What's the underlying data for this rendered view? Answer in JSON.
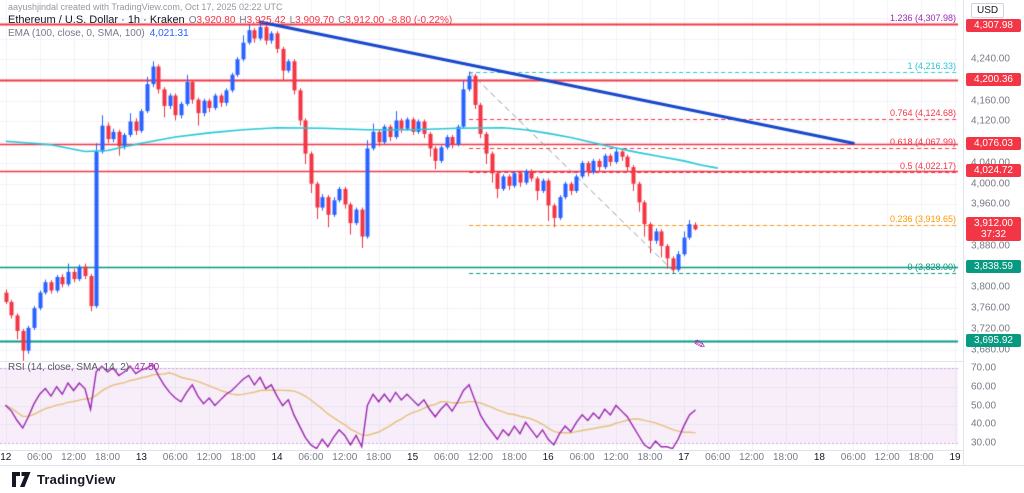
{
  "header": {
    "attribution": "aayushjindal created with TradingView.com, Oct 17, 2025 02:22 UTC",
    "symbol": "Ethereum / U.S. Dollar · 1h · Kraken",
    "ohlc": [
      {
        "k": "O",
        "v": "3,920.80"
      },
      {
        "k": "H",
        "v": "3,925.42"
      },
      {
        "k": "L",
        "v": "3,909.70"
      },
      {
        "k": "C",
        "v": "3,912.00"
      }
    ],
    "change": "-8.80 (-0.22%)",
    "ema_label": "EMA (100, close, 0, SMA, 100)",
    "ema_value": "4,021.31"
  },
  "rsi": {
    "label": "RSI (14, close, SMA, 14, 2)",
    "value": "47.50"
  },
  "price_axis": {
    "currency": "USD",
    "ticks": [
      [
        4240,
        "4,240.00"
      ],
      [
        4160,
        "4,160.00"
      ],
      [
        4120,
        "4,120.00"
      ],
      [
        4040,
        "4,040.00"
      ],
      [
        4000,
        "4,000.00"
      ],
      [
        3960,
        "3,960.00"
      ],
      [
        3880,
        "3,880.00"
      ],
      [
        3800,
        "3,800.00"
      ],
      [
        3760,
        "3,760.00"
      ],
      [
        3720,
        "3,720.00"
      ],
      [
        3680,
        "3,680.00"
      ]
    ],
    "rsi_ticks": [
      [
        70,
        "70.00"
      ],
      [
        60,
        "60.00"
      ],
      [
        50,
        "50.00"
      ],
      [
        40,
        "40.00"
      ],
      [
        30,
        "30.00"
      ]
    ],
    "badges": [
      {
        "price": 4307.98,
        "text": "4,307.98",
        "bg": "#f23645"
      },
      {
        "price": 4200.36,
        "text": "4,200.36",
        "bg": "#f23645"
      },
      {
        "price": 4076.03,
        "text": "4,076.03",
        "bg": "#f23645"
      },
      {
        "price": 4024.72,
        "text": "4,024.72",
        "bg": "#f23645"
      },
      {
        "price": 3912.0,
        "text": "3,912.00",
        "bg": "#f23645",
        "countdown": "37:32"
      },
      {
        "price": 3838.59,
        "text": "3,838.59",
        "bg": "#089981"
      },
      {
        "price": 3695.92,
        "text": "3,695.92",
        "bg": "#089981"
      }
    ]
  },
  "bottom_bar": {
    "logo_text": "TradingView"
  },
  "icons": {
    "brush": "✎"
  },
  "colors": {
    "up": "#2962ff",
    "down": "#f23645",
    "ema": "#26c6da",
    "grid": "#f0f3fa",
    "trend": "#1848cc",
    "dash_trend": "#9598a1",
    "red_line": "#f23645",
    "green_line": "#089981",
    "rsi_line": "#9c27b0",
    "rsi_sma": "#e5c07b",
    "rsi_band": "rgba(156,39,176,0.08)",
    "rsi_band_edge": "rgba(156,39,176,0.35)"
  },
  "chart_data": {
    "type": "candlestick",
    "title": "Ethereum / U.S. Dollar",
    "interval": "1h",
    "exchange": "Kraken",
    "ylim": [
      3660,
      4335
    ],
    "grid_step": 40,
    "hours_total": 170,
    "time_labels": [
      [
        0,
        "12",
        1
      ],
      [
        6,
        "06:00",
        0
      ],
      [
        12,
        "12:00",
        0
      ],
      [
        18,
        "18:00",
        0
      ],
      [
        24,
        "13",
        1
      ],
      [
        30,
        "06:00",
        0
      ],
      [
        36,
        "12:00",
        0
      ],
      [
        42,
        "18:00",
        0
      ],
      [
        48,
        "14",
        1
      ],
      [
        54,
        "06:00",
        0
      ],
      [
        60,
        "12:00",
        0
      ],
      [
        66,
        "18:00",
        0
      ],
      [
        72,
        "15",
        1
      ],
      [
        78,
        "06:00",
        0
      ],
      [
        84,
        "12:00",
        0
      ],
      [
        90,
        "18:00",
        0
      ],
      [
        96,
        "16",
        1
      ],
      [
        102,
        "06:00",
        0
      ],
      [
        108,
        "12:00",
        0
      ],
      [
        114,
        "18:00",
        0
      ],
      [
        120,
        "17",
        1
      ],
      [
        126,
        "06:00",
        0
      ],
      [
        132,
        "12:00",
        0
      ],
      [
        138,
        "18:00",
        0
      ],
      [
        144,
        "18",
        1
      ],
      [
        150,
        "06:00",
        0
      ],
      [
        156,
        "12:00",
        0
      ],
      [
        162,
        "18:00",
        0
      ],
      [
        168,
        "19",
        1
      ]
    ],
    "candles": [
      [
        3790,
        3796,
        3768,
        3772
      ],
      [
        3772,
        3776,
        3740,
        3746
      ],
      [
        3746,
        3750,
        3700,
        3716
      ],
      [
        3716,
        3720,
        3658,
        3678
      ],
      [
        3678,
        3726,
        3672,
        3722
      ],
      [
        3722,
        3764,
        3718,
        3760
      ],
      [
        3760,
        3794,
        3756,
        3790
      ],
      [
        3790,
        3815,
        3786,
        3810
      ],
      [
        3810,
        3814,
        3788,
        3794
      ],
      [
        3794,
        3824,
        3790,
        3820
      ],
      [
        3820,
        3826,
        3800,
        3806
      ],
      [
        3806,
        3846,
        3802,
        3830
      ],
      [
        3830,
        3836,
        3810,
        3816
      ],
      [
        3816,
        3844,
        3812,
        3840
      ],
      [
        3840,
        3846,
        3816,
        3822
      ],
      [
        3822,
        3826,
        3754,
        3764
      ],
      [
        3764,
        4078,
        3760,
        4062
      ],
      [
        4062,
        4132,
        4058,
        4112
      ],
      [
        4112,
        4118,
        4078,
        4086
      ],
      [
        4086,
        4106,
        4080,
        4100
      ],
      [
        4100,
        4104,
        4054,
        4072
      ],
      [
        4072,
        4098,
        4066,
        4094
      ],
      [
        4094,
        4136,
        4090,
        4120
      ],
      [
        4120,
        4126,
        4094,
        4102
      ],
      [
        4102,
        4144,
        4098,
        4140
      ],
      [
        4140,
        4206,
        4136,
        4192
      ],
      [
        4192,
        4236,
        4186,
        4226
      ],
      [
        4226,
        4230,
        4174,
        4182
      ],
      [
        4182,
        4186,
        4128,
        4150
      ],
      [
        4150,
        4174,
        4144,
        4170
      ],
      [
        4170,
        4174,
        4122,
        4132
      ],
      [
        4132,
        4158,
        4126,
        4154
      ],
      [
        4154,
        4210,
        4150,
        4196
      ],
      [
        4196,
        4200,
        4154,
        4162
      ],
      [
        4162,
        4166,
        4112,
        4136
      ],
      [
        4136,
        4164,
        4130,
        4160
      ],
      [
        4160,
        4164,
        4138,
        4146
      ],
      [
        4146,
        4174,
        4142,
        4170
      ],
      [
        4170,
        4174,
        4148,
        4156
      ],
      [
        4156,
        4184,
        4150,
        4180
      ],
      [
        4180,
        4214,
        4176,
        4210
      ],
      [
        4210,
        4244,
        4206,
        4240
      ],
      [
        4240,
        4286,
        4236,
        4272
      ],
      [
        4272,
        4306,
        4268,
        4296
      ],
      [
        4296,
        4300,
        4272,
        4280
      ],
      [
        4280,
        4308,
        4276,
        4302
      ],
      [
        4302,
        4306,
        4268,
        4276
      ],
      [
        4276,
        4294,
        4270,
        4290
      ],
      [
        4290,
        4294,
        4252,
        4260
      ],
      [
        4260,
        4264,
        4198,
        4218
      ],
      [
        4218,
        4240,
        4214,
        4236
      ],
      [
        4236,
        4240,
        4172,
        4180
      ],
      [
        4180,
        4184,
        4112,
        4122
      ],
      [
        4122,
        4126,
        4038,
        4058
      ],
      [
        4058,
        4062,
        3982,
        4000
      ],
      [
        4000,
        4004,
        3932,
        3954
      ],
      [
        3954,
        3980,
        3948,
        3974
      ],
      [
        3974,
        3978,
        3916,
        3940
      ],
      [
        3940,
        3974,
        3936,
        3968
      ],
      [
        3968,
        3994,
        3964,
        3990
      ],
      [
        3990,
        3994,
        3952,
        3960
      ],
      [
        3960,
        3964,
        3902,
        3924
      ],
      [
        3924,
        3954,
        3920,
        3950
      ],
      [
        3950,
        3954,
        3876,
        3898
      ],
      [
        3898,
        4084,
        3894,
        4068
      ],
      [
        4068,
        4116,
        4064,
        4100
      ],
      [
        4100,
        4104,
        4072,
        4080
      ],
      [
        4080,
        4114,
        4076,
        4110
      ],
      [
        4110,
        4114,
        4082,
        4090
      ],
      [
        4090,
        4140,
        4086,
        4122
      ],
      [
        4122,
        4126,
        4098,
        4106
      ],
      [
        4106,
        4128,
        4102,
        4124
      ],
      [
        4124,
        4128,
        4094,
        4100
      ],
      [
        4100,
        4124,
        4096,
        4120
      ],
      [
        4120,
        4124,
        4088,
        4096
      ],
      [
        4096,
        4100,
        4052,
        4068
      ],
      [
        4068,
        4072,
        4028,
        4044
      ],
      [
        4044,
        4074,
        4040,
        4070
      ],
      [
        4070,
        4094,
        4066,
        4090
      ],
      [
        4090,
        4094,
        4068,
        4076
      ],
      [
        4076,
        4114,
        4072,
        4110
      ],
      [
        4110,
        4198,
        4106,
        4182
      ],
      [
        4182,
        4216,
        4178,
        4208
      ],
      [
        4208,
        4212,
        4144,
        4152
      ],
      [
        4152,
        4156,
        4088,
        4096
      ],
      [
        4096,
        4100,
        4038,
        4058
      ],
      [
        4058,
        4062,
        4002,
        4020
      ],
      [
        4020,
        4024,
        3972,
        3990
      ],
      [
        3990,
        4018,
        3986,
        4014
      ],
      [
        4014,
        4018,
        3988,
        3996
      ],
      [
        3996,
        4024,
        3992,
        4020
      ],
      [
        4020,
        4024,
        3994,
        4002
      ],
      [
        4002,
        4028,
        3998,
        4024
      ],
      [
        4024,
        4028,
        4004,
        4010
      ],
      [
        4010,
        4014,
        3968,
        3986
      ],
      [
        3986,
        4010,
        3982,
        4006
      ],
      [
        4006,
        4010,
        3928,
        3958
      ],
      [
        3958,
        3962,
        3916,
        3934
      ],
      [
        3934,
        3978,
        3930,
        3974
      ],
      [
        3974,
        4004,
        3970,
        4000
      ],
      [
        4000,
        4004,
        3978,
        3986
      ],
      [
        3986,
        4018,
        3982,
        4014
      ],
      [
        4014,
        4044,
        4010,
        4040
      ],
      [
        4040,
        4044,
        4014,
        4022
      ],
      [
        4022,
        4048,
        4018,
        4044
      ],
      [
        4044,
        4048,
        4024,
        4032
      ],
      [
        4032,
        4058,
        4028,
        4054
      ],
      [
        4054,
        4058,
        4034,
        4042
      ],
      [
        4042,
        4068,
        4038,
        4062
      ],
      [
        4062,
        4066,
        4044,
        4052
      ],
      [
        4052,
        4056,
        4024,
        4032
      ],
      [
        4032,
        4036,
        3986,
        4000
      ],
      [
        4000,
        4004,
        3946,
        3964
      ],
      [
        3964,
        3968,
        3898,
        3922
      ],
      [
        3922,
        3926,
        3866,
        3890
      ],
      [
        3890,
        3914,
        3884,
        3908
      ],
      [
        3908,
        3912,
        3858,
        3880
      ],
      [
        3880,
        3884,
        3836,
        3856
      ],
      [
        3856,
        3860,
        3828,
        3834
      ],
      [
        3834,
        3870,
        3830,
        3864
      ],
      [
        3864,
        3908,
        3860,
        3896
      ],
      [
        3896,
        3930,
        3892,
        3922
      ],
      [
        3920.8,
        3925.42,
        3909.7,
        3912
      ]
    ],
    "ema_points": [
      [
        0,
        4082
      ],
      [
        8,
        4075
      ],
      [
        14,
        4062
      ],
      [
        18,
        4064
      ],
      [
        24,
        4078
      ],
      [
        30,
        4090
      ],
      [
        36,
        4098
      ],
      [
        42,
        4104
      ],
      [
        48,
        4108
      ],
      [
        56,
        4107
      ],
      [
        64,
        4104
      ],
      [
        72,
        4104
      ],
      [
        80,
        4107
      ],
      [
        88,
        4108
      ],
      [
        92,
        4104
      ],
      [
        96,
        4097
      ],
      [
        100,
        4089
      ],
      [
        104,
        4079
      ],
      [
        108,
        4069
      ],
      [
        112,
        4060
      ],
      [
        116,
        4052
      ],
      [
        120,
        4044
      ],
      [
        123,
        4036
      ],
      [
        126,
        4030
      ]
    ],
    "rsi_values": [
      50,
      47,
      42,
      38,
      44,
      51,
      56,
      59,
      55,
      60,
      56,
      62,
      58,
      62,
      59,
      48,
      68,
      71,
      68,
      70,
      66,
      68,
      71,
      67,
      69,
      70,
      72,
      66,
      61,
      57,
      54,
      52,
      57,
      61,
      55,
      51,
      54,
      50,
      53,
      56,
      58,
      61,
      64,
      66,
      61,
      65,
      59,
      61,
      55,
      50,
      53,
      45,
      39,
      33,
      29,
      27,
      32,
      28,
      33,
      37,
      34,
      29,
      34,
      28,
      50,
      56,
      52,
      56,
      52,
      57,
      53,
      56,
      53,
      50,
      53,
      48,
      44,
      48,
      51,
      47,
      52,
      58,
      61,
      53,
      45,
      40,
      36,
      32,
      37,
      34,
      39,
      35,
      41,
      37,
      33,
      37,
      32,
      29,
      35,
      39,
      36,
      41,
      45,
      42,
      46,
      43,
      48,
      45,
      50,
      47,
      44,
      39,
      34,
      29,
      27,
      31,
      28,
      28,
      27,
      32,
      39,
      45,
      47.5
    ],
    "rsi_sma_window": 14,
    "rsi_band": [
      30,
      70
    ],
    "fib_levels": [
      {
        "level": "1.236",
        "price": 4307.98,
        "text": "1.236 (4,307.98)",
        "color": "#9c27b0"
      },
      {
        "level": "1",
        "price": 4216.33,
        "text": "1 (4,216.33)",
        "color": "#26c6da"
      },
      {
        "level": "0.764",
        "price": 4124.68,
        "text": "0.764 (4,124.68)",
        "color": "#f23645"
      },
      {
        "level": "0.618",
        "price": 4067.99,
        "text": "0.618 (4,067.99)",
        "color": "#f23645"
      },
      {
        "level": "0.5",
        "price": 4022.17,
        "text": "0.5 (4,022.17)",
        "color": "#f23645"
      },
      {
        "level": "0.236",
        "price": 3919.65,
        "text": "0.236 (3,919.65)",
        "color": "#ff9800"
      },
      {
        "level": "0",
        "price": 3828.0,
        "text": "0 (3,828.00)",
        "color": "#089981"
      }
    ],
    "fib_start_hour": 82,
    "horizontal_lines": [
      {
        "price": 4307.98,
        "color": "#f23645",
        "width": 2
      },
      {
        "price": 4200.36,
        "color": "#f23645",
        "width": 2
      },
      {
        "price": 4076.03,
        "color": "#f23645",
        "width": 1.5
      },
      {
        "price": 4024.72,
        "color": "#f23645",
        "width": 1.5
      },
      {
        "price": 3838.59,
        "color": "#089981",
        "width": 1.5
      },
      {
        "price": 3695.92,
        "color": "#089981",
        "width": 2
      }
    ],
    "trendlines": [
      {
        "from": [
          45,
          4312
        ],
        "to": [
          150,
          4078
        ],
        "color": "#1848cc",
        "width": 3,
        "dash": false
      },
      {
        "from": [
          82,
          4216
        ],
        "to": [
          118.5,
          3828
        ],
        "color": "#9598a1",
        "width": 1,
        "dash": true
      }
    ]
  }
}
